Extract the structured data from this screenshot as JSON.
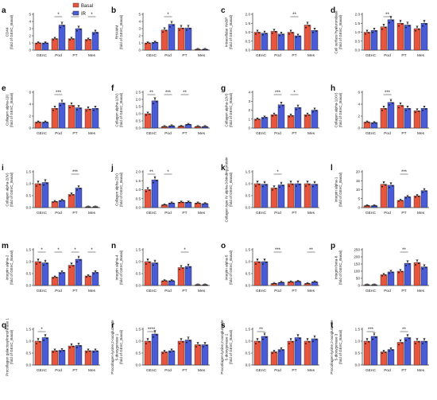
{
  "colors": {
    "basal": "#e8553f",
    "ir": "#4a5bd6",
    "axis": "#333333"
  },
  "legend": {
    "basal": "Basal",
    "ir": "IR"
  },
  "chart_data": [
    {
      "type": "bar",
      "panel": "a",
      "ylabel": [
        "CD44",
        "(fold of GEnC_Basal)"
      ],
      "categories": [
        "GEnC",
        "Pod",
        "PT",
        "Mes"
      ],
      "ylim": [
        0,
        5
      ],
      "yticks": [
        "0",
        "1",
        "2",
        "3",
        "4",
        "5"
      ],
      "series": [
        {
          "name": "Basal",
          "values": [
            1.0,
            1.6,
            1.6,
            1.5
          ]
        },
        {
          "name": "IR",
          "values": [
            1.0,
            3.5,
            3.0,
            2.5
          ]
        }
      ],
      "sig": [
        {
          "cat": 1,
          "label": "*"
        },
        {
          "cat": 2,
          "label": "****"
        },
        {
          "cat": 3,
          "label": "*"
        }
      ]
    },
    {
      "type": "bar",
      "panel": "b",
      "ylabel": [
        "RHAMM",
        "(fold of GEnC_Basal)"
      ],
      "categories": [
        "GEnC",
        "Pod",
        "PT",
        "Mes"
      ],
      "ylim": [
        0,
        5
      ],
      "yticks": [
        "0",
        "1",
        "2",
        "3",
        "4",
        "5"
      ],
      "series": [
        {
          "name": "Basal",
          "values": [
            1.0,
            2.8,
            3.1,
            0.1
          ]
        },
        {
          "name": "IR",
          "values": [
            1.1,
            3.6,
            3.1,
            0.1
          ]
        }
      ],
      "sig": [
        {
          "cat": 1,
          "label": "*"
        }
      ]
    },
    {
      "type": "bar",
      "panel": "c",
      "ylabel": [
        "Intracellular HABP",
        "(fold of GEnC_Basal)"
      ],
      "categories": [
        "GEnC",
        "Pod",
        "PT",
        "Mes"
      ],
      "ylim": [
        0,
        2.0
      ],
      "yticks": [
        "0.0",
        "0.5",
        "1.0",
        "1.5",
        "2.0"
      ],
      "series": [
        {
          "name": "Basal",
          "values": [
            1.0,
            1.05,
            1.0,
            1.4
          ]
        },
        {
          "name": "IR",
          "values": [
            0.95,
            0.9,
            0.8,
            1.1
          ]
        }
      ],
      "sig": [
        {
          "cat": 2,
          "label": "**"
        }
      ]
    },
    {
      "type": "bar",
      "panel": "d",
      "ylabel": [
        "Cell surface hyaluronidase",
        "(fold of GEnC_Basal)"
      ],
      "categories": [
        "GEnC",
        "Pod",
        "PT",
        "Mes"
      ],
      "ylim": [
        0,
        2.0
      ],
      "yticks": [
        "0.0",
        "0.5",
        "1.0",
        "1.5",
        "2.0"
      ],
      "series": [
        {
          "name": "Basal",
          "values": [
            1.0,
            1.3,
            1.5,
            1.2
          ]
        },
        {
          "name": "IR",
          "values": [
            1.1,
            1.7,
            1.4,
            1.5
          ]
        }
      ],
      "sig": [
        {
          "cat": 1,
          "label": "**"
        }
      ]
    },
    {
      "type": "bar",
      "panel": "e",
      "ylabel": [
        "Collagen alpha-1(I)",
        "(fold of GEnC_Basal)"
      ],
      "categories": [
        "GEnC",
        "Pod",
        "PT",
        "Mes"
      ],
      "ylim": [
        0,
        6
      ],
      "yticks": [
        "0",
        "2",
        "4",
        "6"
      ],
      "series": [
        {
          "name": "Basal",
          "values": [
            1.0,
            3.3,
            3.8,
            3.2
          ]
        },
        {
          "name": "IR",
          "values": [
            1.0,
            4.2,
            3.4,
            3.3
          ]
        }
      ],
      "sig": [
        {
          "cat": 1,
          "label": "***"
        }
      ]
    },
    {
      "type": "bar",
      "panel": "f",
      "ylabel": [
        "Collagen alpha-1(IV)",
        "(fold of GEnC_Basal)"
      ],
      "categories": [
        "GEnC",
        "Pod",
        "PT",
        "Mes"
      ],
      "ylim": [
        0,
        2.5
      ],
      "yticks": [
        "0.0",
        "0.5",
        "1.0",
        "1.5",
        "2.0",
        "2.5"
      ],
      "series": [
        {
          "name": "Basal",
          "values": [
            1.0,
            0.1,
            0.12,
            0.1
          ]
        },
        {
          "name": "IR",
          "values": [
            1.9,
            0.15,
            0.25,
            0.1
          ]
        }
      ],
      "sig": [
        {
          "cat": 0,
          "label": "**"
        },
        {
          "cat": 1,
          "label": "***"
        },
        {
          "cat": 2,
          "label": "**"
        }
      ]
    },
    {
      "type": "bar",
      "panel": "g",
      "ylabel": [
        "Collagen alpha-1(VI)",
        "(fold of GEnC_Basal)"
      ],
      "categories": [
        "GEnC",
        "Pod",
        "PT",
        "Mes"
      ],
      "ylim": [
        0,
        4
      ],
      "yticks": [
        "0",
        "1",
        "2",
        "3",
        "4"
      ],
      "series": [
        {
          "name": "Basal",
          "values": [
            1.0,
            1.5,
            1.4,
            1.5
          ]
        },
        {
          "name": "IR",
          "values": [
            1.2,
            2.6,
            2.3,
            2.0
          ]
        }
      ],
      "sig": [
        {
          "cat": 1,
          "label": "***"
        },
        {
          "cat": 2,
          "label": "*"
        }
      ]
    },
    {
      "type": "bar",
      "panel": "h",
      "ylabel": [
        "Collagen alpha-1(XV)",
        "(fold of GEnC_Basal)"
      ],
      "categories": [
        "GEnC",
        "Pod",
        "PT",
        "Mes"
      ],
      "ylim": [
        0,
        6
      ],
      "yticks": [
        "0",
        "2",
        "4",
        "6"
      ],
      "series": [
        {
          "name": "Basal",
          "values": [
            1.0,
            3.3,
            3.8,
            2.9
          ]
        },
        {
          "name": "IR",
          "values": [
            0.9,
            4.3,
            3.3,
            3.3
          ]
        }
      ],
      "sig": [
        {
          "cat": 1,
          "label": "***"
        }
      ]
    },
    {
      "type": "bar",
      "panel": "i",
      "ylabel": [
        "Collagen alpha-2(IV)",
        "(fold of GEnC_Basal)"
      ],
      "categories": [
        "GEnC",
        "Pod",
        "PT",
        "Mes"
      ],
      "ylim": [
        0,
        1.5
      ],
      "yticks": [
        "0.0",
        "0.5",
        "1.0",
        "1.5"
      ],
      "series": [
        {
          "name": "Basal",
          "values": [
            1.0,
            0.25,
            0.55,
            0.02
          ]
        },
        {
          "name": "IR",
          "values": [
            1.05,
            0.3,
            0.82,
            0.02
          ]
        }
      ],
      "sig": [
        {
          "cat": 2,
          "label": "***"
        }
      ]
    },
    {
      "type": "bar",
      "panel": "j",
      "ylabel": [
        "Collagen alpha-2(V)",
        "(fold of GEnC_Basal)"
      ],
      "categories": [
        "GEnC",
        "Pod",
        "PT",
        "Mes"
      ],
      "ylim": [
        0,
        2.0
      ],
      "yticks": [
        "0.0",
        "0.5",
        "1.0",
        "1.5",
        "2.0"
      ],
      "series": [
        {
          "name": "Basal",
          "values": [
            1.0,
            0.15,
            0.3,
            0.25
          ]
        },
        {
          "name": "IR",
          "values": [
            1.55,
            0.25,
            0.3,
            0.22
          ]
        }
      ],
      "sig": [
        {
          "cat": 0,
          "label": "**"
        },
        {
          "cat": 1,
          "label": "*"
        }
      ]
    },
    {
      "type": "bar",
      "panel": "k",
      "ylabel": [
        "Collagen type IV alpha-3-binding protein",
        "(fold of GEnC_Basal)"
      ],
      "categories": [
        "GEnC",
        "Pod",
        "PT",
        "Mes"
      ],
      "ylim": [
        0,
        1.5
      ],
      "yticks": [
        "0.0",
        "0.5",
        "1.0",
        "1.5"
      ],
      "series": [
        {
          "name": "Basal",
          "values": [
            1.0,
            0.82,
            1.0,
            1.0
          ]
        },
        {
          "name": "IR",
          "values": [
            0.98,
            0.95,
            1.0,
            0.98
          ]
        }
      ],
      "sig": [
        {
          "cat": 1,
          "label": "*"
        }
      ]
    },
    {
      "type": "bar",
      "panel": "l",
      "ylabel": [
        "Integrin alpha-1",
        "(fold of GEnC_Basal)"
      ],
      "categories": [
        "GEnC",
        "Pod",
        "PT",
        "Mes"
      ],
      "ylim": [
        0,
        20
      ],
      "yticks": [
        "0",
        "5",
        "10",
        "15",
        "20"
      ],
      "series": [
        {
          "name": "Basal",
          "values": [
            1.0,
            13.0,
            4.0,
            6.5
          ]
        },
        {
          "name": "IR",
          "values": [
            1.0,
            12.5,
            6.0,
            9.5
          ]
        }
      ],
      "sig": [
        {
          "cat": 2,
          "label": "***"
        }
      ]
    },
    {
      "type": "bar",
      "panel": "m",
      "ylabel": [
        "Integrin alpha-2",
        "(fold of GEnC_Basal)"
      ],
      "categories": [
        "GEnC",
        "Pod",
        "PT",
        "Mes"
      ],
      "ylim": [
        0,
        1.5
      ],
      "yticks": [
        "0.0",
        "0.5",
        "1.0",
        "1.5"
      ],
      "series": [
        {
          "name": "Basal",
          "values": [
            1.0,
            0.35,
            0.85,
            0.4
          ]
        },
        {
          "name": "IR",
          "values": [
            0.95,
            0.55,
            1.1,
            0.55
          ]
        }
      ],
      "sig": [
        {
          "cat": 0,
          "label": "*"
        },
        {
          "cat": 1,
          "label": "*"
        },
        {
          "cat": 2,
          "label": "*"
        },
        {
          "cat": 3,
          "label": "*"
        }
      ]
    },
    {
      "type": "bar",
      "panel": "n",
      "ylabel": [
        "Integrin alpha-4",
        "(fold of GEnC_Basal)"
      ],
      "categories": [
        "GEnC",
        "Pod",
        "PT",
        "Mes"
      ],
      "ylim": [
        0,
        1.5
      ],
      "yticks": [
        "0.0",
        "0.5",
        "1.0",
        "1.5"
      ],
      "series": [
        {
          "name": "Basal",
          "values": [
            1.0,
            0.2,
            0.75,
            0.02
          ]
        },
        {
          "name": "IR",
          "values": [
            0.95,
            0.2,
            0.8,
            0.02
          ]
        }
      ],
      "sig": [
        {
          "cat": 2,
          "label": "*"
        }
      ]
    },
    {
      "type": "bar",
      "panel": "o",
      "ylabel": [
        "Integrin alpha-5",
        "(fold of GEnC_Basal)"
      ],
      "categories": [
        "GEnC",
        "Pod",
        "PT",
        "Mes"
      ],
      "ylim": [
        0,
        1.5
      ],
      "yticks": [
        "0.0",
        "0.5",
        "1.0",
        "1.5"
      ],
      "series": [
        {
          "name": "Basal",
          "values": [
            1.0,
            0.08,
            0.15,
            0.08
          ]
        },
        {
          "name": "IR",
          "values": [
            1.0,
            0.13,
            0.17,
            0.15
          ]
        }
      ],
      "sig": [
        {
          "cat": 1,
          "label": "***"
        },
        {
          "cat": 3,
          "label": "**"
        }
      ]
    },
    {
      "type": "bar",
      "panel": "p",
      "ylabel": [
        "Integrin beta-6",
        "(fold of GEnC_Basal)"
      ],
      "categories": [
        "GEnC",
        "Pod",
        "PT",
        "Mes"
      ],
      "ylim": [
        0,
        250
      ],
      "yticks": [
        "0",
        "50",
        "100",
        "150",
        "200",
        "250"
      ],
      "series": [
        {
          "name": "Basal",
          "values": [
            1.0,
            75,
            100,
            160
          ]
        },
        {
          "name": "IR",
          "values": [
            1.0,
            95,
            155,
            130
          ]
        }
      ],
      "sig": [
        {
          "cat": 2,
          "label": "**"
        }
      ]
    },
    {
      "type": "bar",
      "panel": "q",
      "ylabel": [
        "Procollagen galactosyltransferase 1",
        "(fold of GEnC_Basal)"
      ],
      "categories": [
        "GEnC",
        "Pod",
        "PT",
        "Mes"
      ],
      "ylim": [
        0,
        1.5
      ],
      "yticks": [
        "0.0",
        "0.5",
        "1.0",
        "1.5"
      ],
      "series": [
        {
          "name": "Basal",
          "values": [
            1.0,
            0.6,
            0.8,
            0.6
          ]
        },
        {
          "name": "IR",
          "values": [
            1.15,
            0.62,
            0.82,
            0.6
          ]
        }
      ],
      "sig": [
        {
          "cat": 0,
          "label": "*"
        }
      ]
    },
    {
      "type": "bar",
      "panel": "r",
      "ylabel": [
        "Procollagen-lysine,2-oxoglutarate",
        "5-dioxygenase 1",
        "(fold of GEnC_Basal)"
      ],
      "categories": [
        "GEnC",
        "Pod",
        "PT",
        "Mes"
      ],
      "ylim": [
        0,
        1.5
      ],
      "yticks": [
        "0.0",
        "0.5",
        "1.0",
        "1.5"
      ],
      "series": [
        {
          "name": "Basal",
          "values": [
            1.0,
            0.55,
            1.0,
            0.85
          ]
        },
        {
          "name": "IR",
          "values": [
            1.3,
            0.6,
            1.05,
            0.85
          ]
        }
      ],
      "sig": [
        {
          "cat": 0,
          "label": "****"
        }
      ]
    },
    {
      "type": "bar",
      "panel": "s",
      "ylabel": [
        "Procollagen-lysine,2-oxoglutarate",
        "5-dioxygenase 2",
        "(fold of GEnC_Basal)"
      ],
      "categories": [
        "GEnC",
        "Pod",
        "PT",
        "Mes"
      ],
      "ylim": [
        0,
        1.5
      ],
      "yticks": [
        "0.0",
        "0.5",
        "1.0",
        "1.5"
      ],
      "series": [
        {
          "name": "Basal",
          "values": [
            1.0,
            0.55,
            1.0,
            1.0
          ]
        },
        {
          "name": "IR",
          "values": [
            1.2,
            0.65,
            1.15,
            1.1
          ]
        }
      ],
      "sig": [
        {
          "cat": 0,
          "label": "**"
        }
      ]
    },
    {
      "type": "bar",
      "panel": "t",
      "ylabel": [
        "Procollagen-lysine,2-oxoglutarate",
        "5-dioxygenase 3",
        "(fold of GEnC_Basal)"
      ],
      "categories": [
        "GEnC",
        "Pod",
        "PT",
        "Mes"
      ],
      "ylim": [
        0,
        1.5
      ],
      "yticks": [
        "0.0",
        "0.5",
        "1.0",
        "1.5"
      ],
      "series": [
        {
          "name": "Basal",
          "values": [
            1.0,
            0.55,
            0.95,
            1.0
          ]
        },
        {
          "name": "IR",
          "values": [
            1.2,
            0.65,
            1.15,
            1.0
          ]
        }
      ],
      "sig": [
        {
          "cat": 0,
          "label": "***"
        },
        {
          "cat": 2,
          "label": "**"
        }
      ]
    }
  ]
}
